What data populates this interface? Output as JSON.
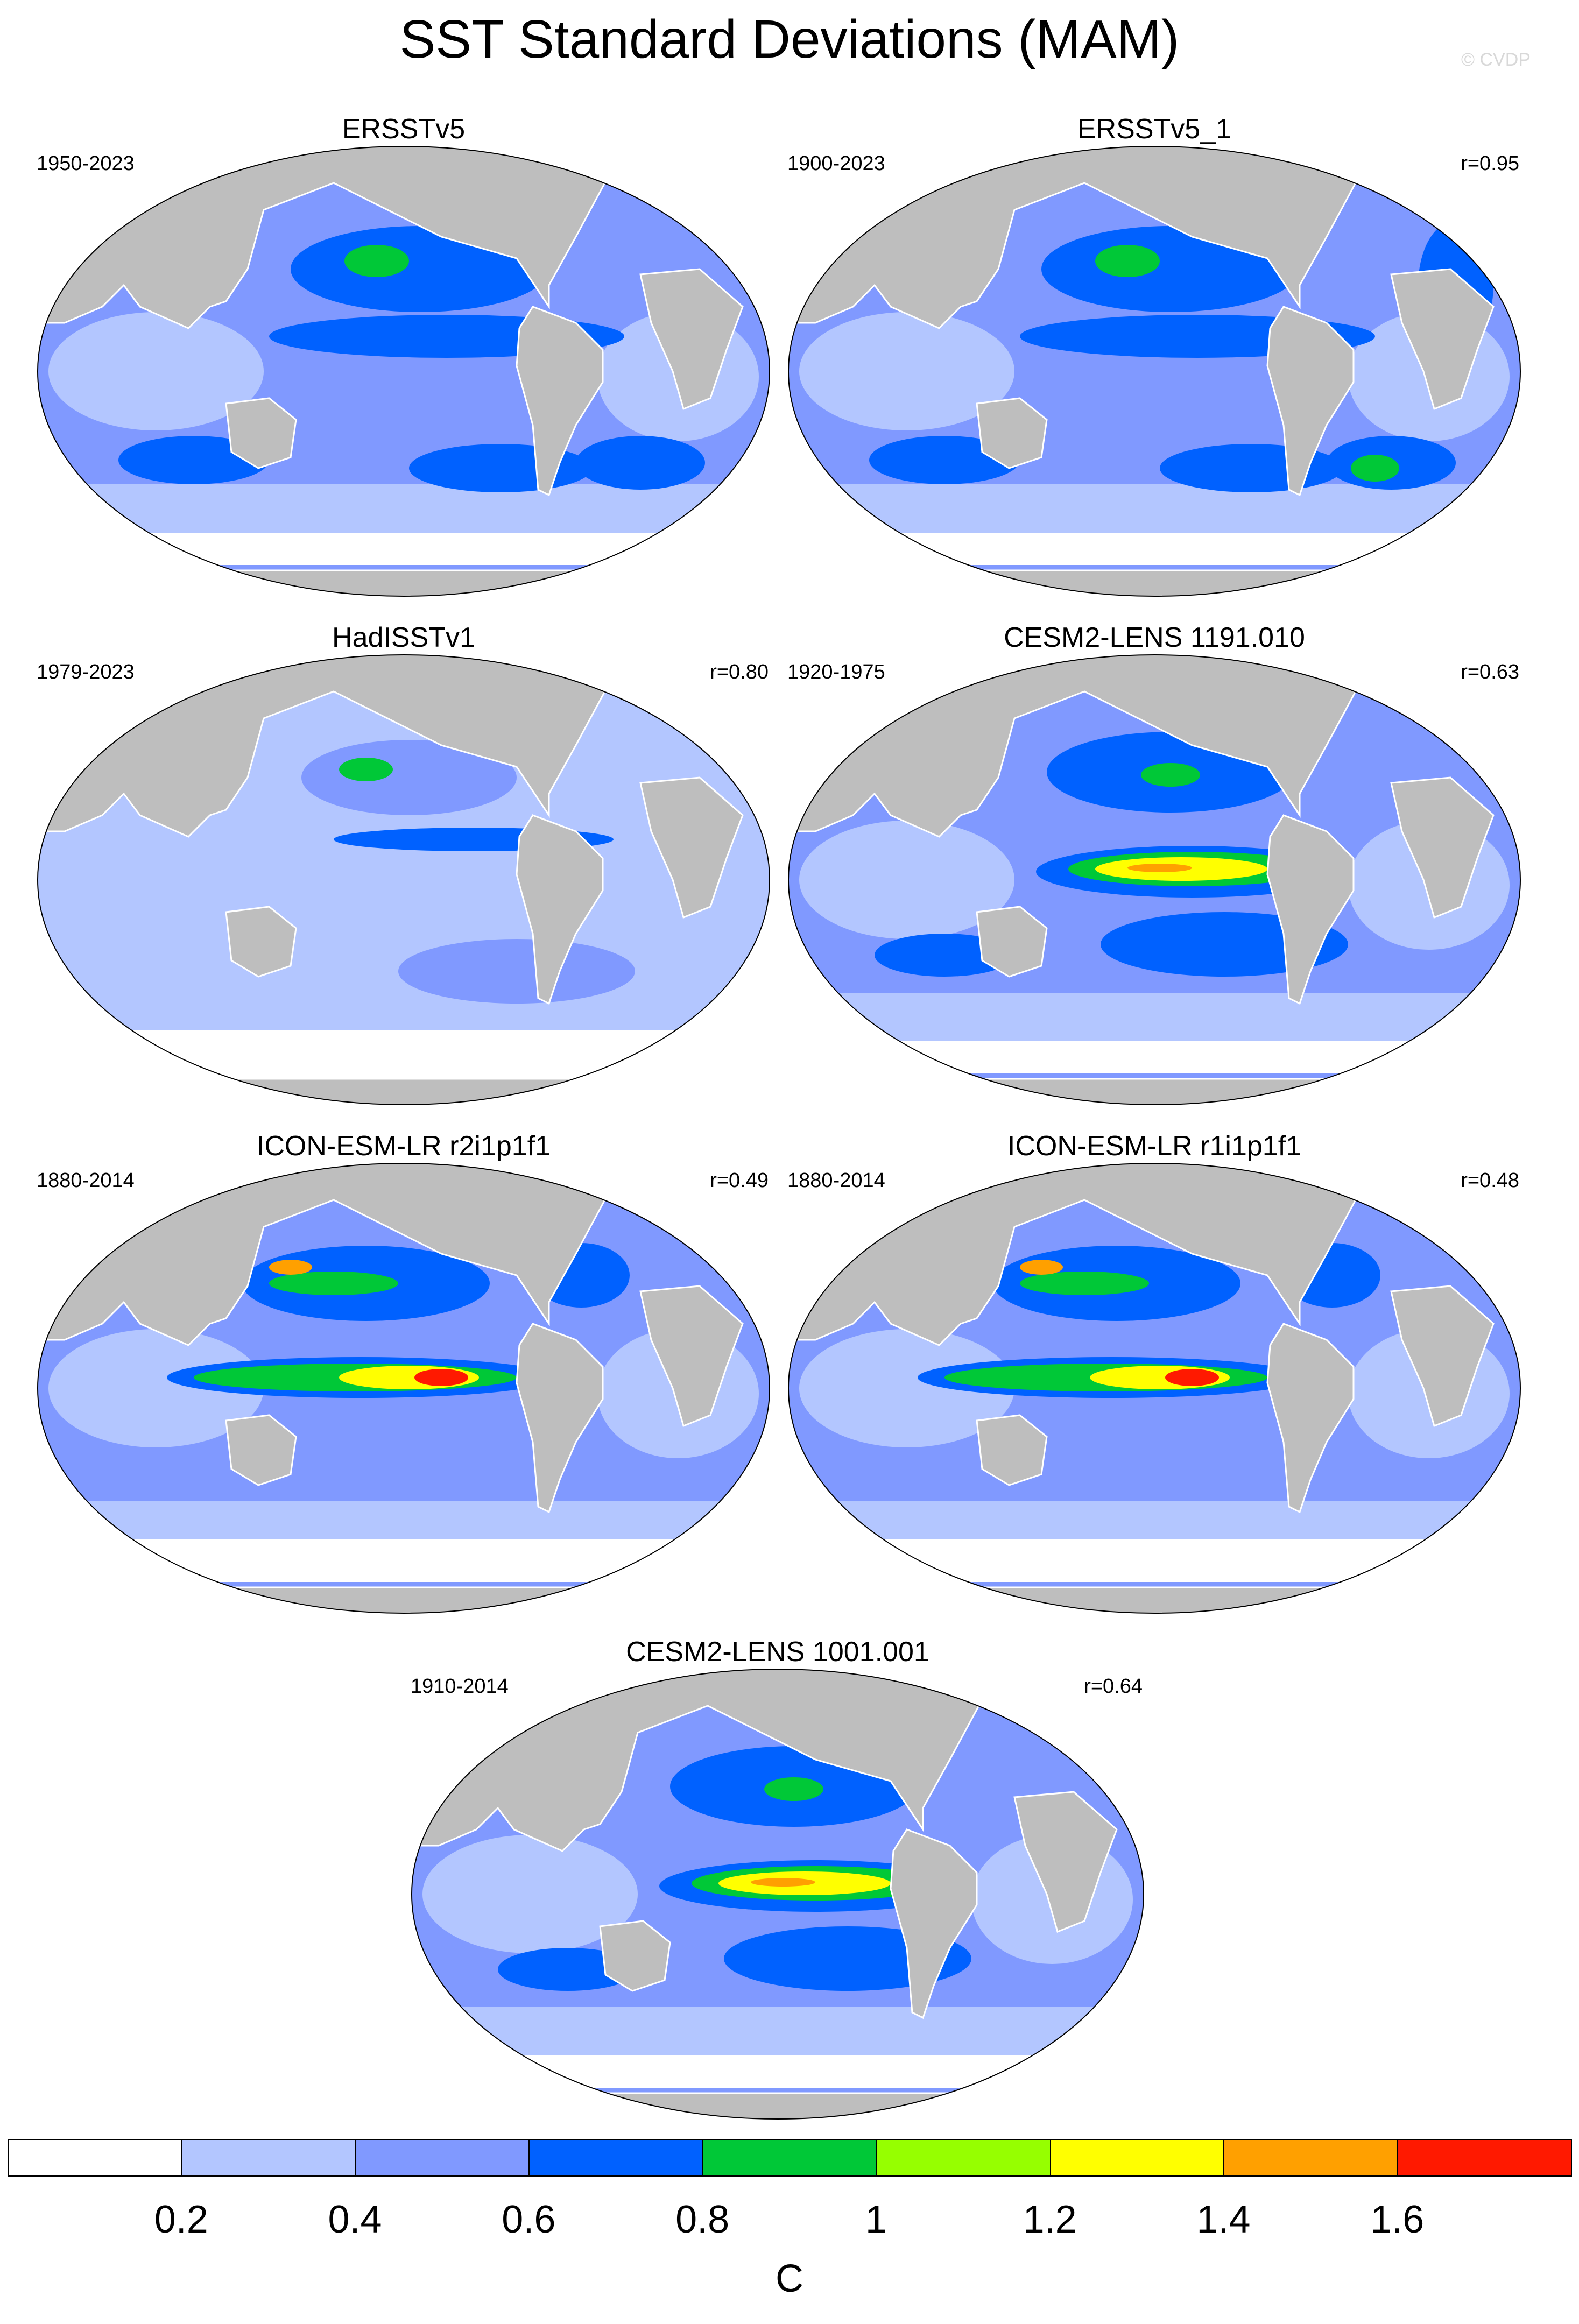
{
  "figure": {
    "title": "SST Standard Deviations (MAM)",
    "watermark": "© CVDP"
  },
  "panels": [
    {
      "title": "ERSSTv5",
      "years": "1950-2023",
      "corr": "",
      "variant": "obs"
    },
    {
      "title": "ERSSTv5_1",
      "years": "1900-2023",
      "corr": "r=0.95",
      "variant": "obs2"
    },
    {
      "title": "HadISSTv1",
      "years": "1979-2023",
      "corr": "r=0.80",
      "variant": "had"
    },
    {
      "title": "CESM2-LENS 1191.010",
      "years": "1920-1975",
      "corr": "r=0.63",
      "variant": "cesm"
    },
    {
      "title": "ICON-ESM-LR r2i1p1f1",
      "years": "1880-2014",
      "corr": "r=0.49",
      "variant": "icon"
    },
    {
      "title": "ICON-ESM-LR r1i1p1f1",
      "years": "1880-2014",
      "corr": "r=0.48",
      "variant": "icon"
    },
    {
      "title": "CESM2-LENS 1001.001",
      "years": "1910-2014",
      "corr": "r=0.64",
      "variant": "cesm"
    }
  ],
  "colorbar": {
    "unit": "C",
    "ticks": [
      "0.2",
      "0.4",
      "0.6",
      "0.8",
      "1",
      "1.2",
      "1.4",
      "1.6"
    ],
    "colors": [
      "#ffffff",
      "#b3c6ff",
      "#8099ff",
      "#0061ff",
      "#00c837",
      "#96ff00",
      "#ffff00",
      "#ffa000",
      "#ff1900"
    ]
  },
  "land_color": "#bebebe"
}
